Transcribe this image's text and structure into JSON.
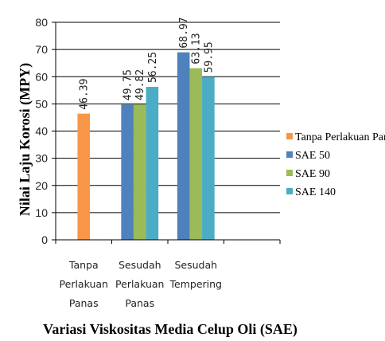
{
  "chart_data": {
    "type": "bar",
    "categories": [
      [
        "Tanpa",
        "Perlakuan",
        "Panas"
      ],
      [
        "Sesudah",
        "Perlakuan",
        "Panas"
      ],
      [
        "Sesudah",
        "Tempering"
      ],
      []
    ],
    "series": [
      {
        "name": "Tanpa Perlakuan Panas",
        "color": "#F79646",
        "values": [
          46.39,
          null,
          null,
          null
        ],
        "labels": [
          "46.39",
          null,
          null,
          null
        ]
      },
      {
        "name": "SAE 50",
        "color": "#4F81BD",
        "values": [
          null,
          49.75,
          68.97,
          null
        ],
        "labels": [
          null,
          "49.75",
          "68.97",
          null
        ]
      },
      {
        "name": "SAE 90",
        "color": "#9BBB59",
        "values": [
          null,
          49.82,
          63.13,
          null
        ],
        "labels": [
          null,
          "49.82",
          "63.13",
          null
        ]
      },
      {
        "name": "SAE 140",
        "color": "#4BACC6",
        "values": [
          null,
          56.25,
          59.95,
          null
        ],
        "labels": [
          null,
          "56.25",
          "59.95",
          null
        ]
      }
    ],
    "xlabel": "Variasi Viskositas Media Celup Oli (SAE)",
    "ylabel": "Nilai Laju Korosi (MPY)",
    "ylim": [
      0,
      80
    ],
    "yticks": [
      0,
      10,
      20,
      30,
      40,
      50,
      60,
      70,
      80
    ],
    "grid": true,
    "legend_position": "right"
  }
}
